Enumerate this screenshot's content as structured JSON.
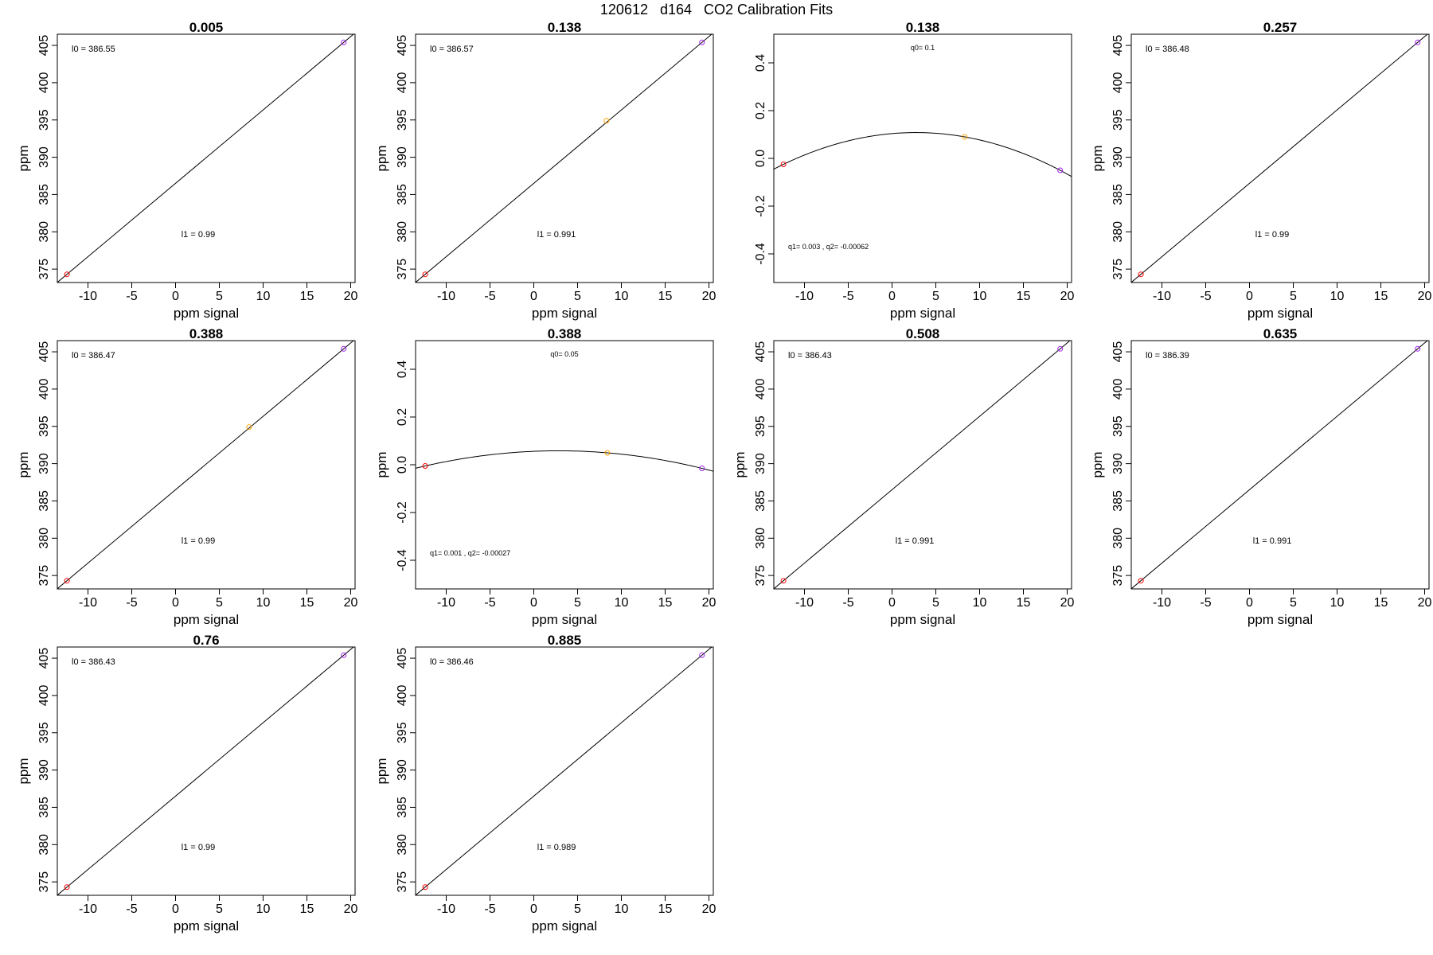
{
  "figure_title": "120612   d164   CO2 Calibration Fits",
  "colors": {
    "low": "#ff0000",
    "mid": "#ffa500",
    "high": "#a020f0",
    "line": "#000000"
  },
  "chart_data": [
    {
      "type": "scatter",
      "fit": "linear",
      "title": "0.005",
      "xlabel": "ppm signal",
      "ylabel": "ppm",
      "xlim": [
        -13.5,
        20.5
      ],
      "ylim": [
        373.2,
        406.5
      ],
      "xticks": [
        "-10",
        "-5",
        "0",
        "5",
        "10",
        "15",
        "20"
      ],
      "yticks": [
        "375",
        "380",
        "385",
        "390",
        "395",
        "400",
        "405"
      ],
      "points": [
        {
          "x": -12.4,
          "y": 374.3,
          "color": "low"
        },
        {
          "x": 19.2,
          "y": 405.4,
          "color": "high"
        }
      ],
      "annotations": [
        {
          "text": "l0 =  386.55",
          "pos": "top-left"
        },
        {
          "text": "l1 =  0.99",
          "pos": "lower-middle"
        }
      ]
    },
    {
      "type": "scatter",
      "fit": "linear",
      "title": "0.138",
      "xlabel": "ppm signal",
      "ylabel": "ppm",
      "xlim": [
        -13.5,
        20.5
      ],
      "ylim": [
        373.2,
        406.5
      ],
      "xticks": [
        "-10",
        "-5",
        "0",
        "5",
        "10",
        "15",
        "20"
      ],
      "yticks": [
        "375",
        "380",
        "385",
        "390",
        "395",
        "400",
        "405"
      ],
      "points": [
        {
          "x": -12.4,
          "y": 374.3,
          "color": "low"
        },
        {
          "x": 8.3,
          "y": 394.9,
          "color": "mid"
        },
        {
          "x": 19.2,
          "y": 405.4,
          "color": "high"
        }
      ],
      "annotations": [
        {
          "text": "l0 =  386.57",
          "pos": "top-left"
        },
        {
          "text": "l1 =  0.991",
          "pos": "lower-middle"
        }
      ]
    },
    {
      "type": "scatter",
      "fit": "quadratic",
      "title": "0.138",
      "xlabel": "ppm signal",
      "ylabel": "",
      "xlim": [
        -13.5,
        20.5
      ],
      "ylim": [
        -0.52,
        0.52
      ],
      "xticks": [
        "-10",
        "-5",
        "0",
        "5",
        "10",
        "15",
        "20"
      ],
      "yticks": [
        "-0.4",
        "-0.2",
        "0.0",
        "0.2",
        "0.4"
      ],
      "points": [
        {
          "x": -12.4,
          "y": -0.025,
          "color": "low"
        },
        {
          "x": 8.3,
          "y": 0.09,
          "color": "mid"
        },
        {
          "x": 19.2,
          "y": -0.05,
          "color": "high"
        }
      ],
      "annotations": [
        {
          "text": "q0= 0.1",
          "pos": "top-center"
        },
        {
          "text": "q1= 0.003 , q2= -0.00062",
          "pos": "bottom-left"
        }
      ]
    },
    {
      "type": "scatter",
      "fit": "linear",
      "title": "0.257",
      "xlabel": "ppm signal",
      "ylabel": "ppm",
      "xlim": [
        -13.5,
        20.5
      ],
      "ylim": [
        373.2,
        406.5
      ],
      "xticks": [
        "-10",
        "-5",
        "0",
        "5",
        "10",
        "15",
        "20"
      ],
      "yticks": [
        "375",
        "380",
        "385",
        "390",
        "395",
        "400",
        "405"
      ],
      "points": [
        {
          "x": -12.4,
          "y": 374.3,
          "color": "low"
        },
        {
          "x": 19.2,
          "y": 405.4,
          "color": "high"
        }
      ],
      "annotations": [
        {
          "text": "l0 =  386.48",
          "pos": "top-left"
        },
        {
          "text": "l1 =  0.99",
          "pos": "lower-middle"
        }
      ]
    },
    {
      "type": "scatter",
      "fit": "linear",
      "title": "0.388",
      "xlabel": "ppm signal",
      "ylabel": "ppm",
      "xlim": [
        -13.5,
        20.5
      ],
      "ylim": [
        373.2,
        406.5
      ],
      "xticks": [
        "-10",
        "-5",
        "0",
        "5",
        "10",
        "15",
        "20"
      ],
      "yticks": [
        "375",
        "380",
        "385",
        "390",
        "395",
        "400",
        "405"
      ],
      "points": [
        {
          "x": -12.4,
          "y": 374.3,
          "color": "low"
        },
        {
          "x": 8.4,
          "y": 394.9,
          "color": "mid"
        },
        {
          "x": 19.2,
          "y": 405.4,
          "color": "high"
        }
      ],
      "annotations": [
        {
          "text": "l0 =  386.47",
          "pos": "top-left"
        },
        {
          "text": "l1 =  0.99",
          "pos": "lower-middle"
        }
      ]
    },
    {
      "type": "scatter",
      "fit": "quadratic",
      "title": "0.388",
      "xlabel": "ppm signal",
      "ylabel": "ppm",
      "xlim": [
        -13.5,
        20.5
      ],
      "ylim": [
        -0.52,
        0.52
      ],
      "xticks": [
        "-10",
        "-5",
        "0",
        "5",
        "10",
        "15",
        "20"
      ],
      "yticks": [
        "-0.4",
        "-0.2",
        "0.0",
        "0.2",
        "0.4"
      ],
      "points": [
        {
          "x": -12.4,
          "y": -0.005,
          "color": "low"
        },
        {
          "x": 8.4,
          "y": 0.05,
          "color": "mid"
        },
        {
          "x": 19.2,
          "y": -0.015,
          "color": "high"
        }
      ],
      "annotations": [
        {
          "text": "q0= 0.05",
          "pos": "top-center"
        },
        {
          "text": "q1= 0.001 , q2= -0.00027",
          "pos": "bottom-left"
        }
      ]
    },
    {
      "type": "scatter",
      "fit": "linear",
      "title": "0.508",
      "xlabel": "ppm signal",
      "ylabel": "ppm",
      "xlim": [
        -13.5,
        20.5
      ],
      "ylim": [
        373.2,
        406.5
      ],
      "xticks": [
        "-10",
        "-5",
        "0",
        "5",
        "10",
        "15",
        "20"
      ],
      "yticks": [
        "375",
        "380",
        "385",
        "390",
        "395",
        "400",
        "405"
      ],
      "points": [
        {
          "x": -12.4,
          "y": 374.3,
          "color": "low"
        },
        {
          "x": 19.2,
          "y": 405.4,
          "color": "high"
        }
      ],
      "annotations": [
        {
          "text": "l0 =  386.43",
          "pos": "top-left"
        },
        {
          "text": "l1 =  0.991",
          "pos": "lower-middle"
        }
      ]
    },
    {
      "type": "scatter",
      "fit": "linear",
      "title": "0.635",
      "xlabel": "ppm signal",
      "ylabel": "ppm",
      "xlim": [
        -13.5,
        20.5
      ],
      "ylim": [
        373.2,
        406.5
      ],
      "xticks": [
        "-10",
        "-5",
        "0",
        "5",
        "10",
        "15",
        "20"
      ],
      "yticks": [
        "375",
        "380",
        "385",
        "390",
        "395",
        "400",
        "405"
      ],
      "points": [
        {
          "x": -12.4,
          "y": 374.3,
          "color": "low"
        },
        {
          "x": 19.2,
          "y": 405.4,
          "color": "high"
        }
      ],
      "annotations": [
        {
          "text": "l0 =  386.39",
          "pos": "top-left"
        },
        {
          "text": "l1 =  0.991",
          "pos": "lower-middle"
        }
      ]
    },
    {
      "type": "scatter",
      "fit": "linear",
      "title": "0.76",
      "xlabel": "ppm signal",
      "ylabel": "ppm",
      "xlim": [
        -13.5,
        20.5
      ],
      "ylim": [
        373.2,
        406.5
      ],
      "xticks": [
        "-10",
        "-5",
        "0",
        "5",
        "10",
        "15",
        "20"
      ],
      "yticks": [
        "375",
        "380",
        "385",
        "390",
        "395",
        "400",
        "405"
      ],
      "points": [
        {
          "x": -12.4,
          "y": 374.3,
          "color": "low"
        },
        {
          "x": 19.2,
          "y": 405.4,
          "color": "high"
        }
      ],
      "annotations": [
        {
          "text": "l0 =  386.43",
          "pos": "top-left"
        },
        {
          "text": "l1 =  0.99",
          "pos": "lower-middle"
        }
      ]
    },
    {
      "type": "scatter",
      "fit": "linear",
      "title": "0.885",
      "xlabel": "ppm signal",
      "ylabel": "ppm",
      "xlim": [
        -13.5,
        20.5
      ],
      "ylim": [
        373.2,
        406.5
      ],
      "xticks": [
        "-10",
        "-5",
        "0",
        "5",
        "10",
        "15",
        "20"
      ],
      "yticks": [
        "375",
        "380",
        "385",
        "390",
        "395",
        "400",
        "405"
      ],
      "points": [
        {
          "x": -12.4,
          "y": 374.3,
          "color": "low"
        },
        {
          "x": 19.2,
          "y": 405.4,
          "color": "high"
        }
      ],
      "annotations": [
        {
          "text": "l0 =  386.46",
          "pos": "top-left"
        },
        {
          "text": "l1 =  0.989",
          "pos": "lower-middle"
        }
      ]
    }
  ]
}
